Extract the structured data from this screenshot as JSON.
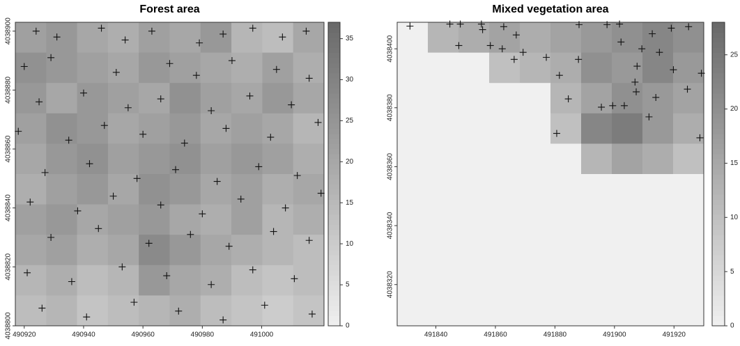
{
  "chart_data": [
    {
      "type": "raster",
      "title": "Forest area",
      "xlim": [
        490917,
        491021
      ],
      "ylim": [
        4038800,
        4038903
      ],
      "xticks": [
        490920,
        490940,
        490960,
        490980,
        491000
      ],
      "yticks": [
        4038800,
        4038820,
        4038840,
        4038860,
        4038880,
        4038900
      ],
      "zlim": [
        0,
        37
      ],
      "zticks": [
        0,
        5,
        10,
        15,
        20,
        25,
        30,
        35
      ],
      "raster": [
        [
          22,
          24,
          20,
          18,
          22,
          20,
          24,
          16,
          14,
          20
        ],
        [
          26,
          24,
          22,
          20,
          24,
          22,
          20,
          18,
          22,
          18
        ],
        [
          24,
          20,
          24,
          22,
          20,
          26,
          22,
          20,
          24,
          20
        ],
        [
          22,
          26,
          24,
          20,
          22,
          24,
          20,
          22,
          20,
          16
        ],
        [
          20,
          24,
          26,
          22,
          24,
          26,
          22,
          24,
          22,
          18
        ],
        [
          18,
          22,
          24,
          20,
          26,
          24,
          20,
          22,
          18,
          20
        ],
        [
          22,
          24,
          20,
          22,
          24,
          20,
          18,
          22,
          16,
          18
        ],
        [
          20,
          22,
          18,
          20,
          28,
          24,
          20,
          18,
          16,
          14
        ],
        [
          16,
          18,
          14,
          16,
          24,
          20,
          18,
          14,
          12,
          14
        ],
        [
          14,
          16,
          12,
          14,
          16,
          18,
          14,
          12,
          10,
          12
        ]
      ],
      "points": {
        "color": "#111111",
        "x": [
          490924,
          490931,
          490946,
          490954,
          490963,
          490979,
          490987,
          490997,
          491007,
          491015,
          490920,
          490929,
          490951,
          490969,
          490978,
          490990,
          491005,
          491016,
          490925,
          490940,
          490955,
          490966,
          490983,
          490996,
          491010,
          490918,
          490935,
          490947,
          490960,
          490974,
          490988,
          491003,
          491019,
          490927,
          490942,
          490958,
          490971,
          490985,
          490999,
          491012,
          490922,
          490938,
          490950,
          490966,
          490980,
          490993,
          491008,
          491020,
          490929,
          490945,
          490962,
          490976,
          490989,
          491004,
          491016,
          490921,
          490936,
          490953,
          490968,
          490983,
          490997,
          491011,
          490926,
          490941,
          490957,
          490972,
          490987,
          491001,
          491017
        ],
        "y": [
          4038900,
          4038898,
          4038901,
          4038897,
          4038900,
          4038896,
          4038899,
          4038901,
          4038898,
          4038900,
          4038888,
          4038891,
          4038886,
          4038889,
          4038885,
          4038890,
          4038887,
          4038884,
          4038876,
          4038879,
          4038874,
          4038877,
          4038873,
          4038878,
          4038875,
          4038866,
          4038863,
          4038868,
          4038865,
          4038862,
          4038867,
          4038864,
          4038869,
          4038852,
          4038855,
          4038850,
          4038853,
          4038849,
          4038854,
          4038851,
          4038842,
          4038839,
          4038844,
          4038841,
          4038838,
          4038843,
          4038840,
          4038845,
          4038830,
          4038833,
          4038828,
          4038831,
          4038827,
          4038832,
          4038829,
          4038818,
          4038815,
          4038820,
          4038817,
          4038814,
          4038819,
          4038816,
          4038806,
          4038803,
          4038808,
          4038805,
          4038802,
          4038807,
          4038804
        ]
      }
    },
    {
      "type": "raster",
      "title": "Mixed vegetation area",
      "xlim": [
        491827,
        491930
      ],
      "ylim": [
        4038306,
        4038409
      ],
      "xticks": [
        491840,
        491860,
        491880,
        491900,
        491920
      ],
      "yticks": [
        4038320,
        4038340,
        4038360,
        4038380,
        4038400
      ],
      "zlim": [
        0,
        28
      ],
      "zticks": [
        0,
        5,
        10,
        15,
        20,
        25
      ],
      "raster": [
        [
          0,
          12,
          14,
          16,
          14,
          16,
          18,
          20,
          22,
          20
        ],
        [
          0,
          0,
          0,
          10,
          12,
          14,
          20,
          18,
          22,
          18
        ],
        [
          0,
          0,
          0,
          0,
          0,
          12,
          16,
          20,
          18,
          16
        ],
        [
          0,
          0,
          0,
          0,
          0,
          10,
          22,
          24,
          18,
          14
        ],
        [
          0,
          0,
          0,
          0,
          0,
          0,
          12,
          16,
          14,
          10
        ],
        [
          0,
          0,
          0,
          0,
          0,
          0,
          0,
          0,
          0,
          0
        ],
        [
          0,
          0,
          0,
          0,
          0,
          0,
          0,
          0,
          0,
          0
        ],
        [
          0,
          0,
          0,
          0,
          0,
          0,
          0,
          0,
          0,
          0
        ],
        [
          0,
          0,
          0,
          0,
          0,
          0,
          0,
          0,
          0,
          0
        ],
        [
          0,
          0,
          0,
          0,
          0,
          0,
          0,
          0,
          0,
          0
        ]
      ],
      "points": {
        "color": "#111111",
        "x": [
          491831.3,
          491844.7,
          491848.2,
          491855.3,
          491862.8,
          491867.0,
          491847.7,
          491855.7,
          491862.3,
          491858.3,
          491866.3,
          491869.3,
          491877.1,
          491887.9,
          491881.5,
          491884.5,
          491888.1,
          491897.5,
          491901.7,
          491902.2,
          491912.7,
          491919.1,
          491924.9,
          491915.1,
          491919.8,
          491909.2,
          491907.6,
          491906.9,
          491907.3,
          491903.3,
          491899.4,
          491895.6,
          491911.6,
          491913.9,
          491924.5,
          491929.2,
          491928.7,
          491880.6
        ],
        "y": [
          4038407.7,
          4038408.4,
          4038408.4,
          4038408.4,
          4038407.5,
          4038404.7,
          4038401.1,
          4038406.5,
          4038400.0,
          4038401.1,
          4038396.4,
          4038398.8,
          4038397.1,
          4038396.4,
          4038391.0,
          4038383.0,
          4038408.2,
          4038408.2,
          4038408.4,
          4038402.3,
          4038405.1,
          4038407.0,
          4038407.5,
          4038398.8,
          4038392.9,
          4038400.0,
          4038394.1,
          4038388.7,
          4038385.4,
          4038380.7,
          4038380.7,
          4038380.2,
          4038376.9,
          4038383.5,
          4038386.3,
          4038391.7,
          4038369.8,
          4038371.3
        ]
      }
    }
  ]
}
